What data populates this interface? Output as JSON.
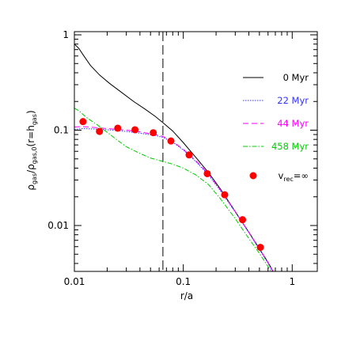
{
  "chart_data": {
    "type": "line",
    "xscale": "log",
    "yscale": "log",
    "xlim": [
      0.01,
      1.7
    ],
    "ylim": [
      0.0033,
      1.08
    ],
    "xlabel": "r/a",
    "ylabel": "ρ_gas/ρ_gas,0(r=h_gas)",
    "ylabel_parts": {
      "rho1": "ρ",
      "sub1": "gas",
      "slash": "/",
      "rho2": "ρ",
      "sub2": "gas,0",
      "paren_open": "(r=h",
      "sub3": "gas",
      "paren_close": ")"
    },
    "x_ticks": [
      {
        "value": 0.01,
        "label": "0.01"
      },
      {
        "value": 0.1,
        "label": "0.1"
      },
      {
        "value": 1,
        "label": "1"
      }
    ],
    "y_ticks": [
      {
        "value": 0.01,
        "label": "0.01"
      },
      {
        "value": 0.1,
        "label": "0.1"
      },
      {
        "value": 1,
        "label": "1"
      }
    ],
    "vline": {
      "x": 0.065,
      "style": "dashed",
      "color": "#000000"
    },
    "legend_position": "right",
    "series": [
      {
        "name": "0 Myr",
        "color": "#000000",
        "dash": "",
        "x": [
          0.01,
          0.011,
          0.012,
          0.014,
          0.017,
          0.021,
          0.027,
          0.035,
          0.045,
          0.055,
          0.065,
          0.08,
          0.1,
          0.13,
          0.17,
          0.22,
          0.3,
          0.4,
          0.5,
          0.6,
          0.7
        ],
        "y": [
          0.8,
          0.72,
          0.62,
          0.48,
          0.38,
          0.31,
          0.25,
          0.2,
          0.165,
          0.14,
          0.12,
          0.098,
          0.074,
          0.052,
          0.036,
          0.024,
          0.014,
          0.0085,
          0.0057,
          0.0041,
          0.003
        ]
      },
      {
        "name": "22 Myr",
        "color": "#3434ff",
        "dash": "1.5,1.5",
        "x": [
          0.01,
          0.012,
          0.015,
          0.02,
          0.03,
          0.04,
          0.055,
          0.065,
          0.08,
          0.1,
          0.13,
          0.17,
          0.22,
          0.3,
          0.4,
          0.5,
          0.6,
          0.7
        ],
        "y": [
          0.102,
          0.104,
          0.103,
          0.101,
          0.097,
          0.093,
          0.088,
          0.084,
          0.075,
          0.062,
          0.047,
          0.034,
          0.023,
          0.0138,
          0.0084,
          0.0056,
          0.004,
          0.0029
        ]
      },
      {
        "name": "44 Myr",
        "color": "#ff00ff",
        "dash": "7,4",
        "x": [
          0.01,
          0.012,
          0.015,
          0.02,
          0.03,
          0.04,
          0.055,
          0.065,
          0.08,
          0.1,
          0.13,
          0.17,
          0.22,
          0.3,
          0.4,
          0.5,
          0.6,
          0.7
        ],
        "y": [
          0.108,
          0.109,
          0.107,
          0.104,
          0.1,
          0.096,
          0.09,
          0.086,
          0.076,
          0.063,
          0.048,
          0.035,
          0.0235,
          0.014,
          0.0085,
          0.0057,
          0.0041,
          0.003
        ]
      },
      {
        "name": "458 Myr",
        "color": "#00cc00",
        "dash": "6,2,1.5,2",
        "x": [
          0.01,
          0.011,
          0.013,
          0.016,
          0.02,
          0.025,
          0.03,
          0.04,
          0.05,
          0.065,
          0.08,
          0.1,
          0.13,
          0.17,
          0.22,
          0.3,
          0.4,
          0.5,
          0.6,
          0.7
        ],
        "y": [
          0.17,
          0.16,
          0.135,
          0.115,
          0.095,
          0.078,
          0.067,
          0.057,
          0.051,
          0.047,
          0.044,
          0.04,
          0.034,
          0.027,
          0.019,
          0.0118,
          0.0073,
          0.0051,
          0.0037,
          0.0028
        ]
      },
      {
        "name": "v_rec=∞",
        "label_main": "v",
        "label_sub": "rec",
        "label_tail": "=∞",
        "color": "#ff0000",
        "marker": "circle",
        "x": [
          0.012,
          0.017,
          0.025,
          0.036,
          0.053,
          0.077,
          0.113,
          0.166,
          0.24,
          0.35,
          0.51
        ],
        "y": [
          0.123,
          0.097,
          0.105,
          0.101,
          0.094,
          0.077,
          0.055,
          0.035,
          0.021,
          0.0115,
          0.0059
        ]
      }
    ]
  }
}
